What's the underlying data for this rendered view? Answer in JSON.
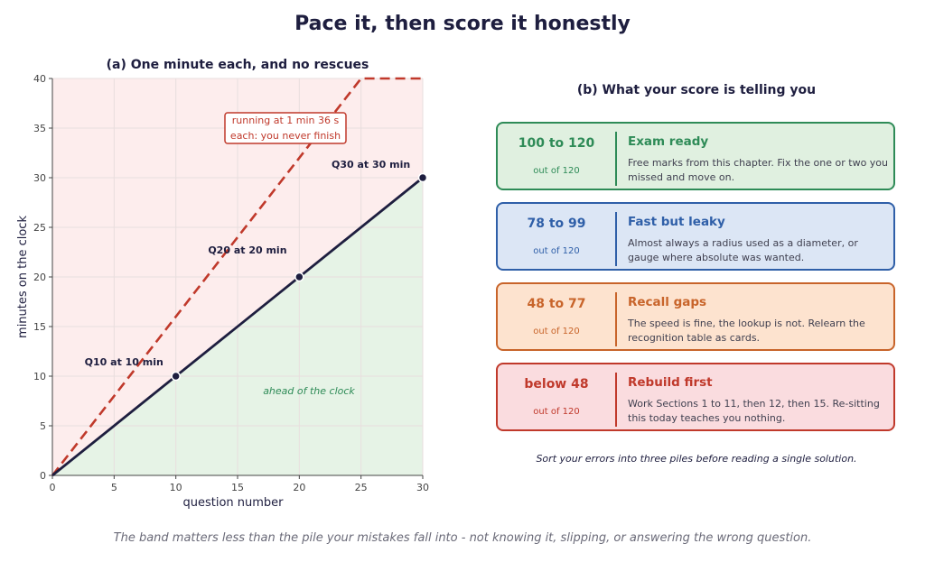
{
  "title": "Pace it, then score it honestly",
  "chart_data": {
    "type": "line",
    "title": "(a) One minute each, and no rescues",
    "xlabel": "question number",
    "ylabel": "minutes on the clock",
    "xlim": [
      0,
      30
    ],
    "ylim": [
      0,
      40
    ],
    "xticks": [
      0,
      5,
      10,
      15,
      20,
      25,
      30
    ],
    "yticks": [
      0,
      5,
      10,
      15,
      20,
      25,
      30,
      35,
      40
    ],
    "grid": true,
    "regions": [
      {
        "text": "ahead of the clock",
        "color": "#2e8b57"
      }
    ],
    "series": [
      {
        "style": "solid",
        "color": "#1e1e3f",
        "x": [
          0,
          30
        ],
        "y": [
          0,
          30
        ],
        "markers": [
          {
            "x": 10,
            "y": 10
          },
          {
            "x": 20,
            "y": 20
          },
          {
            "x": 30,
            "y": 30
          }
        ]
      },
      {
        "style": "dashed",
        "color": "#c0392b",
        "x": [
          0,
          25,
          30
        ],
        "y": [
          0,
          40,
          40
        ]
      }
    ],
    "annotations": [
      {
        "text": "Q10 at 10 min",
        "x": 10,
        "y": 10
      },
      {
        "text": "Q20 at 20 min",
        "x": 20,
        "y": 20
      },
      {
        "text": "Q30 at 30 min",
        "x": 30,
        "y": 30
      },
      {
        "lines": [
          "running at 1 min 36 s",
          "each: you never finish"
        ],
        "color": "#c0392b"
      }
    ]
  },
  "score_panel": {
    "title": "(b) What your score is telling you",
    "bands": [
      {
        "range": "100 to 120",
        "out_of": "out of 120",
        "label": "Exam ready",
        "desc": "Free marks from this chapter. Fix the one or two you missed and move on.",
        "color": "#2e8b57",
        "bg": "#e0f0e0"
      },
      {
        "range": "78 to 99",
        "out_of": "out of 120",
        "label": "Fast but leaky",
        "desc": "Almost always a radius used as a diameter, or gauge where absolute was wanted.",
        "color": "#2f5fa8",
        "bg": "#dce6f5"
      },
      {
        "range": "48 to 77",
        "out_of": "out of 120",
        "label": "Recall gaps",
        "desc": "The speed is fine, the lookup is not. Relearn the recognition table as cards.",
        "color": "#c8642a",
        "bg": "#fde3cf"
      },
      {
        "range": "below 48",
        "out_of": "out of 120",
        "label": "Rebuild first",
        "desc": "Work Sections 1 to 11, then 12, then 15. Re-sitting this today teaches you nothing.",
        "color": "#c0392b",
        "bg": "#fadcdf"
      }
    ],
    "note": "Sort your errors into three piles before reading a single solution."
  },
  "footer": "The band matters less than the pile your mistakes fall into - not knowing it, slipping, or answering the wrong question."
}
